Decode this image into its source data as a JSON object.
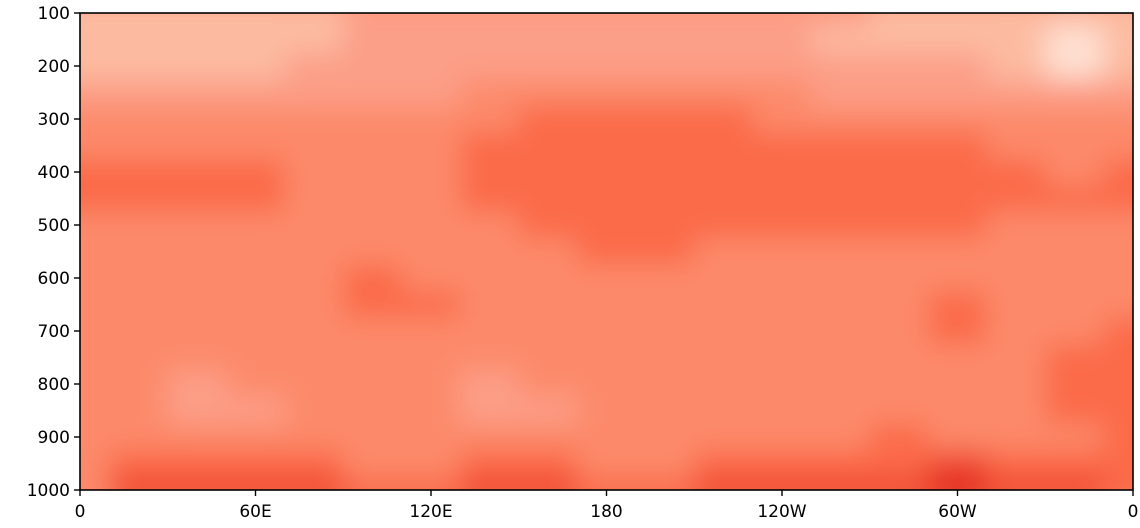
{
  "chart_data": {
    "type": "heatmap",
    "title": "",
    "xlabel": "",
    "ylabel": "",
    "x_ticks": [
      "0",
      "60E",
      "120E",
      "180",
      "120W",
      "60W",
      "0"
    ],
    "x_tick_values": [
      0,
      60,
      120,
      180,
      240,
      300,
      360
    ],
    "xlim": [
      0,
      360
    ],
    "y_ticks": [
      "100",
      "200",
      "300",
      "400",
      "500",
      "600",
      "700",
      "800",
      "900",
      "1000"
    ],
    "y_tick_values": [
      100,
      200,
      300,
      400,
      500,
      600,
      700,
      800,
      900,
      1000
    ],
    "ylim": [
      100,
      1000
    ],
    "y_inverted": true,
    "colorbar": "none",
    "grid": false,
    "colormap": "Reds",
    "level_colors": [
      "#fee0d2",
      "#fcbba1",
      "#fc9f88",
      "#fc8a6a",
      "#fb6a4a",
      "#f04a32",
      "#e0281d"
    ],
    "field": {
      "description_levels": "index into level_colors (0 = lightest)",
      "longitude": [
        0,
        20,
        40,
        60,
        80,
        100,
        120,
        140,
        160,
        180,
        200,
        220,
        240,
        260,
        280,
        300,
        320,
        340,
        360
      ],
      "pressure": [
        100,
        150,
        200,
        250,
        300,
        350,
        400,
        450,
        500,
        550,
        600,
        650,
        700,
        750,
        800,
        850,
        900,
        950,
        1000
      ],
      "level": [
        [
          1,
          1,
          1,
          1,
          1,
          2,
          2,
          2,
          2,
          2,
          2,
          2,
          2,
          2,
          1,
          1,
          1,
          1,
          1
        ],
        [
          1,
          1,
          1,
          1,
          1,
          2,
          2,
          2,
          2,
          2,
          2,
          2,
          2,
          1,
          1,
          1,
          1,
          0,
          1
        ],
        [
          1,
          1,
          1,
          1,
          2,
          2,
          2,
          2,
          2,
          2,
          2,
          2,
          2,
          2,
          2,
          2,
          1,
          0,
          1
        ],
        [
          2,
          2,
          2,
          2,
          2,
          2,
          2,
          3,
          3,
          3,
          3,
          3,
          3,
          2,
          2,
          2,
          2,
          2,
          2
        ],
        [
          3,
          3,
          3,
          3,
          3,
          3,
          3,
          3,
          4,
          4,
          4,
          4,
          3,
          3,
          3,
          3,
          3,
          3,
          3
        ],
        [
          3,
          3,
          3,
          3,
          3,
          3,
          3,
          4,
          4,
          4,
          4,
          4,
          4,
          4,
          4,
          4,
          3,
          3,
          3
        ],
        [
          4,
          4,
          4,
          4,
          3,
          3,
          3,
          4,
          4,
          4,
          4,
          4,
          4,
          4,
          4,
          4,
          4,
          3,
          4
        ],
        [
          4,
          4,
          4,
          4,
          3,
          3,
          3,
          4,
          4,
          4,
          4,
          4,
          4,
          4,
          4,
          4,
          4,
          4,
          4
        ],
        [
          3,
          3,
          3,
          3,
          3,
          3,
          3,
          3,
          4,
          4,
          4,
          4,
          4,
          4,
          4,
          4,
          3,
          3,
          3
        ],
        [
          3,
          3,
          3,
          3,
          3,
          3,
          3,
          3,
          3,
          4,
          4,
          3,
          3,
          3,
          3,
          3,
          3,
          3,
          3
        ],
        [
          3,
          3,
          3,
          3,
          3,
          4,
          3,
          3,
          3,
          3,
          3,
          3,
          3,
          3,
          3,
          3,
          3,
          3,
          3
        ],
        [
          3,
          3,
          3,
          3,
          3,
          4,
          4,
          3,
          3,
          3,
          3,
          3,
          3,
          3,
          3,
          4,
          3,
          3,
          3
        ],
        [
          3,
          3,
          3,
          3,
          3,
          3,
          3,
          3,
          3,
          3,
          3,
          3,
          3,
          3,
          3,
          4,
          3,
          3,
          4
        ],
        [
          3,
          3,
          3,
          3,
          3,
          3,
          3,
          3,
          3,
          3,
          3,
          3,
          3,
          3,
          3,
          3,
          3,
          4,
          4
        ],
        [
          3,
          3,
          2,
          3,
          3,
          3,
          3,
          2,
          3,
          3,
          3,
          3,
          3,
          3,
          3,
          3,
          3,
          4,
          4
        ],
        [
          3,
          3,
          2,
          2,
          3,
          3,
          3,
          2,
          2,
          3,
          3,
          3,
          3,
          3,
          3,
          3,
          3,
          4,
          4
        ],
        [
          3,
          3,
          3,
          3,
          3,
          3,
          3,
          3,
          3,
          3,
          3,
          3,
          3,
          3,
          4,
          3,
          3,
          3,
          4
        ],
        [
          3,
          4,
          4,
          4,
          4,
          3,
          3,
          4,
          4,
          3,
          3,
          4,
          4,
          4,
          4,
          5,
          4,
          4,
          4
        ],
        [
          3,
          5,
          5,
          5,
          5,
          4,
          4,
          5,
          5,
          4,
          4,
          5,
          5,
          5,
          5,
          6,
          5,
          5,
          4
        ]
      ]
    }
  }
}
